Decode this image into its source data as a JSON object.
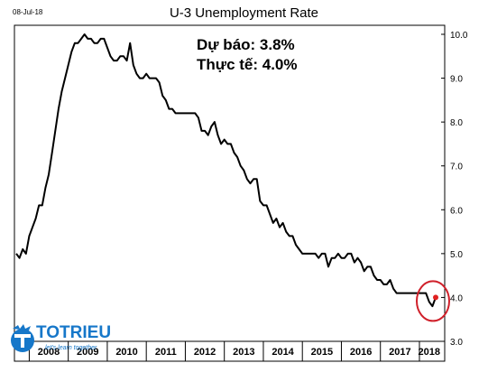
{
  "date_stamp": "08-Jul-18",
  "annotation": {
    "forecast": "Dự báo: 3.8%",
    "actual": "Thực tế: 4.0%"
  },
  "logo": {
    "name": "TOTRIEU",
    "tagline": "let's learn together"
  },
  "colors": {
    "line": "#000000",
    "highlight_circle": "#d0202a",
    "highlight_point": "#e02020",
    "logo": "#1677c9"
  },
  "chart_data": {
    "type": "line",
    "title": "U-3 Unemployment Rate",
    "xlabel": "",
    "ylabel": "",
    "x_ticks": [
      "2008",
      "2009",
      "2010",
      "2011",
      "2012",
      "2013",
      "2014",
      "2015",
      "2016",
      "2017",
      "2018"
    ],
    "y_ticks": [
      "3.0",
      "4.0",
      "5.0",
      "6.0",
      "7.0",
      "8.0",
      "9.0",
      "10.0"
    ],
    "ylim": [
      3.0,
      10.0
    ],
    "xlim": [
      "2007-09",
      "2018-06"
    ],
    "grid": false,
    "series": [
      {
        "x": [
          "2007-09",
          "2007-10",
          "2007-11",
          "2007-12",
          "2008-01",
          "2008-02",
          "2008-03",
          "2008-04",
          "2008-05",
          "2008-06",
          "2008-07",
          "2008-08",
          "2008-09",
          "2008-10",
          "2008-11",
          "2008-12",
          "2009-01",
          "2009-02",
          "2009-03",
          "2009-04",
          "2009-05",
          "2009-06",
          "2009-07",
          "2009-08",
          "2009-09",
          "2009-10",
          "2009-11",
          "2009-12",
          "2010-01",
          "2010-02",
          "2010-03",
          "2010-04",
          "2010-05",
          "2010-06",
          "2010-07",
          "2010-08",
          "2010-09",
          "2010-10",
          "2010-11",
          "2010-12",
          "2011-01",
          "2011-02",
          "2011-03",
          "2011-04",
          "2011-05",
          "2011-06",
          "2011-07",
          "2011-08",
          "2011-09",
          "2011-10",
          "2011-11",
          "2011-12",
          "2012-01",
          "2012-02",
          "2012-03",
          "2012-04",
          "2012-05",
          "2012-06",
          "2012-07",
          "2012-08",
          "2012-09",
          "2012-10",
          "2012-11",
          "2012-12",
          "2013-01",
          "2013-02",
          "2013-03",
          "2013-04",
          "2013-05",
          "2013-06",
          "2013-07",
          "2013-08",
          "2013-09",
          "2013-10",
          "2013-11",
          "2013-12",
          "2014-01",
          "2014-02",
          "2014-03",
          "2014-04",
          "2014-05",
          "2014-06",
          "2014-07",
          "2014-08",
          "2014-09",
          "2014-10",
          "2014-11",
          "2014-12",
          "2015-01",
          "2015-02",
          "2015-03",
          "2015-04",
          "2015-05",
          "2015-06",
          "2015-07",
          "2015-08",
          "2015-09",
          "2015-10",
          "2015-11",
          "2015-12",
          "2016-01",
          "2016-02",
          "2016-03",
          "2016-04",
          "2016-05",
          "2016-06",
          "2016-07",
          "2016-08",
          "2016-09",
          "2016-10",
          "2016-11",
          "2016-12",
          "2017-01",
          "2017-02",
          "2017-03",
          "2017-04",
          "2017-05",
          "2017-06",
          "2017-07",
          "2017-08",
          "2017-09",
          "2017-10",
          "2017-11",
          "2017-12",
          "2018-01",
          "2018-02",
          "2018-03",
          "2018-04",
          "2018-05",
          "2018-06"
        ],
        "values": [
          5.0,
          4.9,
          5.1,
          5.0,
          5.4,
          5.6,
          5.8,
          6.1,
          6.1,
          6.5,
          6.8,
          7.3,
          7.8,
          8.3,
          8.7,
          9.0,
          9.3,
          9.6,
          9.8,
          9.8,
          9.9,
          10.0,
          9.9,
          9.9,
          9.8,
          9.8,
          9.9,
          9.9,
          9.7,
          9.5,
          9.4,
          9.4,
          9.5,
          9.5,
          9.4,
          9.8,
          9.3,
          9.1,
          9.0,
          9.0,
          9.1,
          9.0,
          9.0,
          9.0,
          8.9,
          8.6,
          8.5,
          8.3,
          8.3,
          8.2,
          8.2,
          8.2,
          8.2,
          8.2,
          8.2,
          8.2,
          8.1,
          7.8,
          7.8,
          7.7,
          7.9,
          8.0,
          7.7,
          7.5,
          7.6,
          7.5,
          7.5,
          7.3,
          7.2,
          7.0,
          6.9,
          6.7,
          6.6,
          6.7,
          6.7,
          6.2,
          6.1,
          6.1,
          5.9,
          5.7,
          5.8,
          5.6,
          5.7,
          5.5,
          5.4,
          5.4,
          5.2,
          5.1,
          5.0,
          5.0,
          5.0,
          5.0,
          5.0,
          4.9,
          5.0,
          5.0,
          4.7,
          4.9,
          4.9,
          5.0,
          4.9,
          4.9,
          5.0,
          5.0,
          4.8,
          4.9,
          4.8,
          4.6,
          4.7,
          4.7,
          4.5,
          4.4,
          4.4,
          4.3,
          4.3,
          4.4,
          4.2,
          4.1,
          4.1,
          4.1,
          4.1,
          4.1,
          4.1,
          4.1,
          4.1,
          4.1,
          4.1,
          3.9,
          3.8,
          4.0
        ]
      }
    ],
    "highlight": {
      "x": "2018-06",
      "value": 4.0
    }
  }
}
